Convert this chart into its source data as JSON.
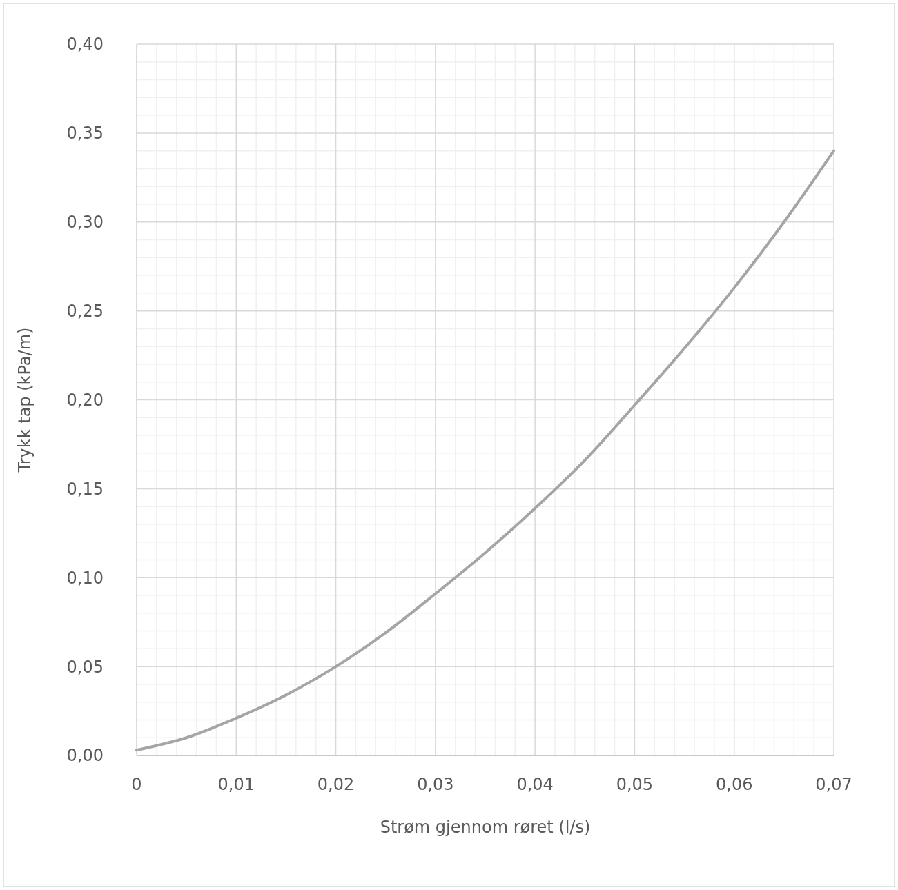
{
  "chart_data": {
    "type": "line",
    "xlabel": "Strøm gjennom røret  (l/s)",
    "ylabel": "Trykk tap  (kPa/m)",
    "series": [
      {
        "color": "#a5a5a5",
        "x": [
          0,
          0.005,
          0.01,
          0.015,
          0.02,
          0.025,
          0.03,
          0.035,
          0.04,
          0.045,
          0.05,
          0.055,
          0.06,
          0.065,
          0.07
        ],
        "values": [
          0.003,
          0.01,
          0.021,
          0.034,
          0.05,
          0.069,
          0.091,
          0.114,
          0.139,
          0.166,
          0.197,
          0.229,
          0.263,
          0.3,
          0.34
        ]
      }
    ],
    "xlim": [
      0,
      0.07
    ],
    "ylim": [
      0,
      0.4
    ],
    "xticks": [
      0,
      {
        "value": 0.01,
        "label": "0,01"
      },
      {
        "value": 0.02,
        "label": "0,02"
      },
      {
        "value": 0.03,
        "label": "0,03"
      },
      {
        "value": 0.04,
        "label": "0,04"
      },
      {
        "value": 0.05,
        "label": "0,05"
      },
      {
        "value": 0.06,
        "label": "0,06"
      },
      {
        "value": 0.07,
        "label": "0,07"
      }
    ],
    "yticks": [
      {
        "value": 0,
        "label": "0,00"
      },
      {
        "value": 0.05,
        "label": "0,05"
      },
      {
        "value": 0.1,
        "label": "0,10"
      },
      {
        "value": 0.15,
        "label": "0,15"
      },
      {
        "value": 0.2,
        "label": "0,20"
      },
      {
        "value": 0.25,
        "label": "0,25"
      },
      {
        "value": 0.3,
        "label": "0,30"
      },
      {
        "value": 0.35,
        "label": "0,35"
      },
      {
        "value": 0.4,
        "label": "0,40"
      }
    ],
    "grid": true,
    "marker": "none",
    "line_style": "solid"
  }
}
